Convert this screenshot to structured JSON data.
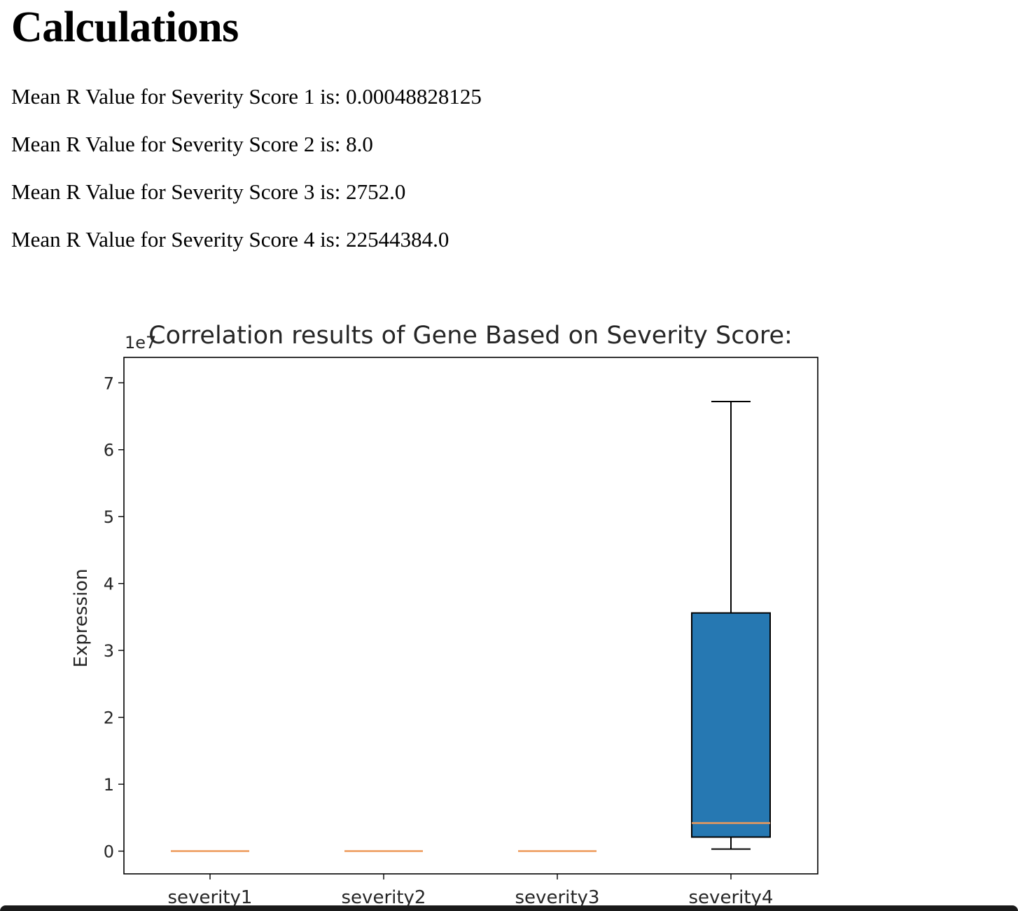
{
  "page": {
    "title": "Calculations",
    "lines": [
      "Mean R Value for Severity Score 1 is: 0.00048828125",
      "Mean R Value for Severity Score 2 is: 8.0",
      "Mean R Value for Severity Score 3 is: 2752.0",
      "Mean R Value for Severity Score 4 is: 22544384.0"
    ]
  },
  "chart_data": {
    "type": "box",
    "title": "Correlation results of Gene Based on Severity Score:",
    "xlabel": "",
    "ylabel": "Expression",
    "y_offset_label": "1e7",
    "y_scale": 10000000,
    "ylim": [
      -3400000,
      73800000
    ],
    "yticks": [
      0,
      10000000,
      20000000,
      30000000,
      40000000,
      50000000,
      60000000,
      70000000
    ],
    "ytick_labels": [
      "0",
      "1",
      "2",
      "3",
      "4",
      "5",
      "6",
      "7"
    ],
    "categories": [
      "severity1",
      "severity2",
      "severity3",
      "severity4"
    ],
    "boxes": [
      {
        "whisker_low": 0,
        "q1": 0,
        "median": 0,
        "q3": 0,
        "whisker_high": 0
      },
      {
        "whisker_low": 0,
        "q1": 0,
        "median": 0,
        "q3": 0,
        "whisker_high": 0
      },
      {
        "whisker_low": 0,
        "q1": 0,
        "median": 0,
        "q3": 0,
        "whisker_high": 0
      },
      {
        "whisker_low": 300000,
        "q1": 2100000,
        "median": 4200000,
        "q3": 35600000,
        "whisker_high": 67200000
      }
    ],
    "box_color": "#2678b2",
    "median_color": "#ee9a5a",
    "grid": false
  }
}
